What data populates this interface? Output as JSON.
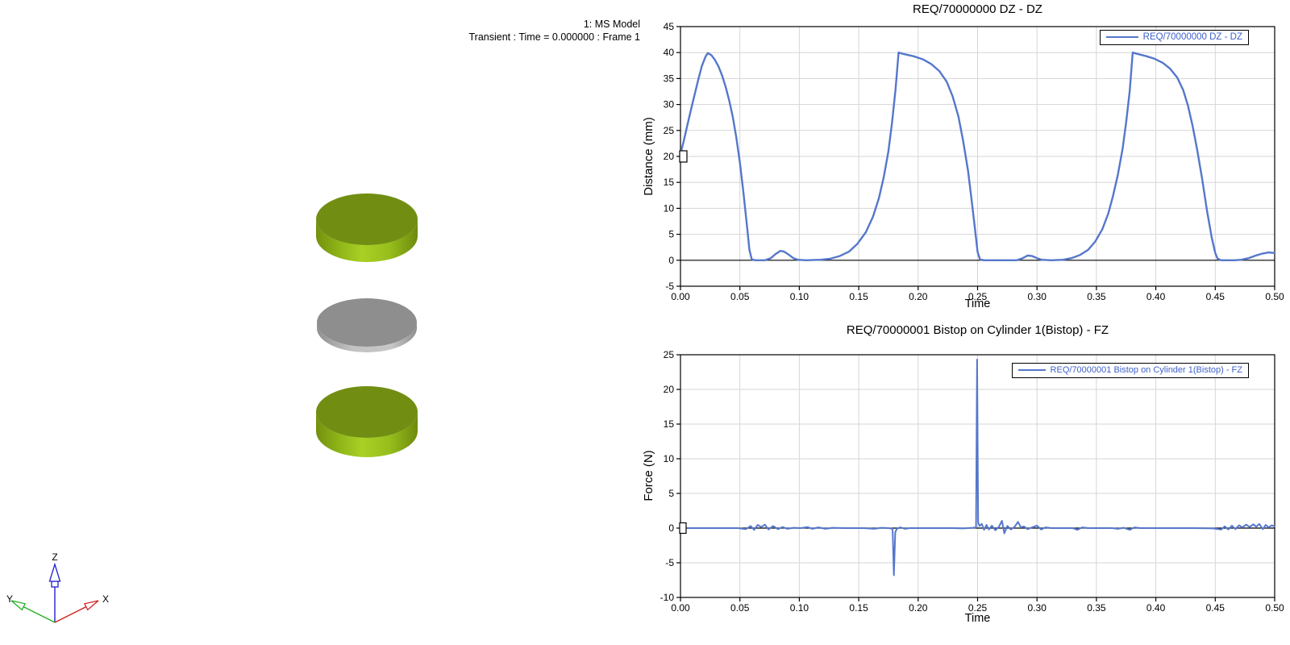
{
  "viewport": {
    "model_label": "1: MS Model",
    "status_label": "Transient : Time = 0.000000 : Frame 1",
    "bodies": [
      {
        "name": "upper-cylinder",
        "shape": "cylinder",
        "top_color": "#718e12",
        "side_bright": "#a9d024",
        "side_dark": "#6e8a0e"
      },
      {
        "name": "middle-disk",
        "shape": "disk",
        "top_color": "#8e8e8e",
        "side_bright": "#c6c6c6",
        "side_dark": "#8f8f8f"
      },
      {
        "name": "lower-cylinder",
        "shape": "cylinder",
        "top_color": "#718e12",
        "side_bright": "#a9d024",
        "side_dark": "#6e8a0e"
      }
    ],
    "triad": {
      "x_label": "X",
      "y_label": "Y",
      "z_label": "Z",
      "x_color": "#d02020",
      "y_color": "#20b020",
      "z_color": "#2020d0"
    }
  },
  "chart_data": [
    {
      "type": "line",
      "title": "REQ/70000000 DZ - DZ",
      "xlabel": "Time",
      "ylabel": "Distance (mm)",
      "legend_label": "REQ/70000000 DZ - DZ",
      "legend_position": "top-right",
      "xlim": [
        0,
        0.5
      ],
      "ylim": [
        -5,
        45
      ],
      "xticks": [
        "0.00",
        "0.05",
        "0.10",
        "0.15",
        "0.20",
        "0.25",
        "0.30",
        "0.35",
        "0.40",
        "0.45",
        "0.50"
      ],
      "yticks": [
        45,
        40,
        35,
        30,
        25,
        20,
        15,
        10,
        5,
        0,
        -5
      ],
      "grid": true,
      "grid_color": "#d6d6d6",
      "line_color": "#5577cb",
      "legend_text_color": "#3f62c9",
      "zero_line": true,
      "marker": {
        "x": 0,
        "y": 20,
        "shape": "open-square",
        "width": 9,
        "height": 14
      },
      "series": [
        {
          "name": "REQ/70000000 DZ - DZ",
          "points": [
            [
              0.0,
              20.5
            ],
            [
              0.003,
              23.2
            ],
            [
              0.006,
              26.2
            ],
            [
              0.009,
              29.2
            ],
            [
              0.012,
              32.0
            ],
            [
              0.015,
              34.8
            ],
            [
              0.018,
              37.4
            ],
            [
              0.021,
              39.2
            ],
            [
              0.023,
              39.9
            ],
            [
              0.026,
              39.5
            ],
            [
              0.029,
              38.6
            ],
            [
              0.032,
              37.3
            ],
            [
              0.035,
              35.6
            ],
            [
              0.038,
              33.4
            ],
            [
              0.041,
              30.8
            ],
            [
              0.044,
              27.6
            ],
            [
              0.047,
              23.6
            ],
            [
              0.05,
              18.8
            ],
            [
              0.053,
              13.0
            ],
            [
              0.056,
              6.6
            ],
            [
              0.058,
              2.0
            ],
            [
              0.06,
              0.2
            ],
            [
              0.063,
              0.0
            ],
            [
              0.071,
              0.0
            ],
            [
              0.076,
              0.4
            ],
            [
              0.08,
              1.2
            ],
            [
              0.084,
              1.8
            ],
            [
              0.087,
              1.7
            ],
            [
              0.091,
              1.1
            ],
            [
              0.095,
              0.4
            ],
            [
              0.099,
              0.1
            ],
            [
              0.106,
              0.0
            ],
            [
              0.118,
              0.1
            ],
            [
              0.126,
              0.3
            ],
            [
              0.134,
              0.8
            ],
            [
              0.142,
              1.7
            ],
            [
              0.149,
              3.2
            ],
            [
              0.156,
              5.4
            ],
            [
              0.162,
              8.4
            ],
            [
              0.167,
              12.0
            ],
            [
              0.171,
              16.0
            ],
            [
              0.175,
              21.0
            ],
            [
              0.178,
              26.5
            ],
            [
              0.181,
              33.0
            ],
            [
              0.1835,
              40.0
            ],
            [
              0.188,
              39.7
            ],
            [
              0.196,
              39.3
            ],
            [
              0.204,
              38.7
            ],
            [
              0.211,
              37.8
            ],
            [
              0.218,
              36.4
            ],
            [
              0.224,
              34.4
            ],
            [
              0.229,
              31.6
            ],
            [
              0.234,
              27.6
            ],
            [
              0.238,
              22.8
            ],
            [
              0.242,
              17.2
            ],
            [
              0.245,
              11.6
            ],
            [
              0.248,
              5.6
            ],
            [
              0.25,
              1.6
            ],
            [
              0.252,
              0.2
            ],
            [
              0.255,
              0.0
            ],
            [
              0.283,
              0.0
            ],
            [
              0.288,
              0.4
            ],
            [
              0.292,
              0.9
            ],
            [
              0.296,
              0.8
            ],
            [
              0.3,
              0.4
            ],
            [
              0.304,
              0.1
            ],
            [
              0.312,
              0.0
            ],
            [
              0.322,
              0.1
            ],
            [
              0.329,
              0.4
            ],
            [
              0.336,
              1.0
            ],
            [
              0.343,
              2.0
            ],
            [
              0.349,
              3.6
            ],
            [
              0.355,
              6.0
            ],
            [
              0.36,
              9.0
            ],
            [
              0.364,
              12.4
            ],
            [
              0.368,
              16.4
            ],
            [
              0.372,
              21.4
            ],
            [
              0.375,
              26.6
            ],
            [
              0.378,
              32.6
            ],
            [
              0.3805,
              40.0
            ],
            [
              0.385,
              39.7
            ],
            [
              0.392,
              39.3
            ],
            [
              0.399,
              38.8
            ],
            [
              0.406,
              38.0
            ],
            [
              0.412,
              36.9
            ],
            [
              0.418,
              35.2
            ],
            [
              0.423,
              32.8
            ],
            [
              0.427,
              29.8
            ],
            [
              0.431,
              25.8
            ],
            [
              0.435,
              21.0
            ],
            [
              0.439,
              15.6
            ],
            [
              0.443,
              9.6
            ],
            [
              0.447,
              4.4
            ],
            [
              0.45,
              1.4
            ],
            [
              0.452,
              0.3
            ],
            [
              0.455,
              0.0
            ],
            [
              0.466,
              0.0
            ],
            [
              0.472,
              0.1
            ],
            [
              0.478,
              0.4
            ],
            [
              0.484,
              0.9
            ],
            [
              0.49,
              1.3
            ],
            [
              0.495,
              1.5
            ],
            [
              0.5,
              1.4
            ]
          ]
        }
      ]
    },
    {
      "type": "line",
      "title": "REQ/70000001 Bistop on Cylinder 1(Bistop) - FZ",
      "xlabel": "Time",
      "ylabel": "Force (N)",
      "legend_label": "REQ/70000001 Bistop on Cylinder 1(Bistop) - FZ",
      "legend_position": "top-right",
      "xlim": [
        0,
        0.5
      ],
      "ylim": [
        -10,
        25
      ],
      "xticks": [
        "0.00",
        "0.05",
        "0.10",
        "0.15",
        "0.20",
        "0.25",
        "0.30",
        "0.35",
        "0.40",
        "0.45",
        "0.50"
      ],
      "yticks": [
        25,
        20,
        15,
        10,
        5,
        0,
        -5,
        -10
      ],
      "grid": true,
      "grid_color": "#d6d6d6",
      "line_color": "#5577cb",
      "legend_text_color": "#3f62c9",
      "zero_line": true,
      "marker": {
        "x": 0,
        "y": 0,
        "shape": "open-square",
        "width": 8,
        "height": 13
      },
      "series": [
        {
          "name": "REQ/70000001 Bistop on Cylinder 1(Bistop) - FZ",
          "points": [
            [
              0.0,
              0.0
            ],
            [
              0.048,
              0.0
            ],
            [
              0.055,
              -0.15
            ],
            [
              0.059,
              0.3
            ],
            [
              0.062,
              -0.25
            ],
            [
              0.065,
              0.45
            ],
            [
              0.068,
              0.15
            ],
            [
              0.071,
              0.5
            ],
            [
              0.074,
              -0.2
            ],
            [
              0.078,
              0.3
            ],
            [
              0.082,
              -0.15
            ],
            [
              0.086,
              0.15
            ],
            [
              0.09,
              -0.1
            ],
            [
              0.095,
              0.05
            ],
            [
              0.101,
              0.0
            ],
            [
              0.107,
              0.15
            ],
            [
              0.111,
              -0.1
            ],
            [
              0.116,
              0.1
            ],
            [
              0.122,
              -0.1
            ],
            [
              0.128,
              0.05
            ],
            [
              0.138,
              0.0
            ],
            [
              0.154,
              0.0
            ],
            [
              0.163,
              -0.1
            ],
            [
              0.169,
              0.05
            ],
            [
              0.175,
              0.0
            ],
            [
              0.1785,
              -0.1
            ],
            [
              0.1796,
              -6.8
            ],
            [
              0.1807,
              -0.6
            ],
            [
              0.182,
              -0.1
            ],
            [
              0.185,
              0.1
            ],
            [
              0.189,
              -0.1
            ],
            [
              0.193,
              0.0
            ],
            [
              0.228,
              0.0
            ],
            [
              0.238,
              -0.05
            ],
            [
              0.246,
              0.05
            ],
            [
              0.2487,
              0.1
            ],
            [
              0.2496,
              24.3
            ],
            [
              0.2505,
              0.8
            ],
            [
              0.2517,
              0.3
            ],
            [
              0.2535,
              0.6
            ],
            [
              0.2555,
              -0.25
            ],
            [
              0.2575,
              0.45
            ],
            [
              0.2595,
              -0.2
            ],
            [
              0.262,
              0.35
            ],
            [
              0.265,
              -0.3
            ],
            [
              0.268,
              0.2
            ],
            [
              0.2705,
              1.05
            ],
            [
              0.2725,
              -0.75
            ],
            [
              0.275,
              0.3
            ],
            [
              0.278,
              -0.2
            ],
            [
              0.281,
              0.15
            ],
            [
              0.284,
              0.9
            ],
            [
              0.2865,
              0.1
            ],
            [
              0.289,
              0.25
            ],
            [
              0.292,
              -0.15
            ],
            [
              0.296,
              0.1
            ],
            [
              0.3,
              0.35
            ],
            [
              0.3035,
              -0.2
            ],
            [
              0.307,
              0.1
            ],
            [
              0.312,
              0.0
            ],
            [
              0.33,
              0.0
            ],
            [
              0.334,
              -0.25
            ],
            [
              0.338,
              0.1
            ],
            [
              0.343,
              0.0
            ],
            [
              0.363,
              0.0
            ],
            [
              0.368,
              -0.1
            ],
            [
              0.373,
              0.05
            ],
            [
              0.378,
              -0.25
            ],
            [
              0.382,
              0.1
            ],
            [
              0.387,
              0.0
            ],
            [
              0.43,
              0.0
            ],
            [
              0.448,
              -0.05
            ],
            [
              0.455,
              -0.2
            ],
            [
              0.458,
              0.25
            ],
            [
              0.461,
              -0.2
            ],
            [
              0.464,
              0.35
            ],
            [
              0.467,
              -0.15
            ],
            [
              0.47,
              0.4
            ],
            [
              0.473,
              0.1
            ],
            [
              0.476,
              0.5
            ],
            [
              0.479,
              0.15
            ],
            [
              0.482,
              0.55
            ],
            [
              0.4845,
              0.2
            ],
            [
              0.487,
              0.6
            ],
            [
              0.49,
              -0.15
            ],
            [
              0.4925,
              0.45
            ],
            [
              0.495,
              0.1
            ],
            [
              0.4975,
              0.4
            ],
            [
              0.5,
              0.25
            ]
          ]
        }
      ]
    }
  ]
}
